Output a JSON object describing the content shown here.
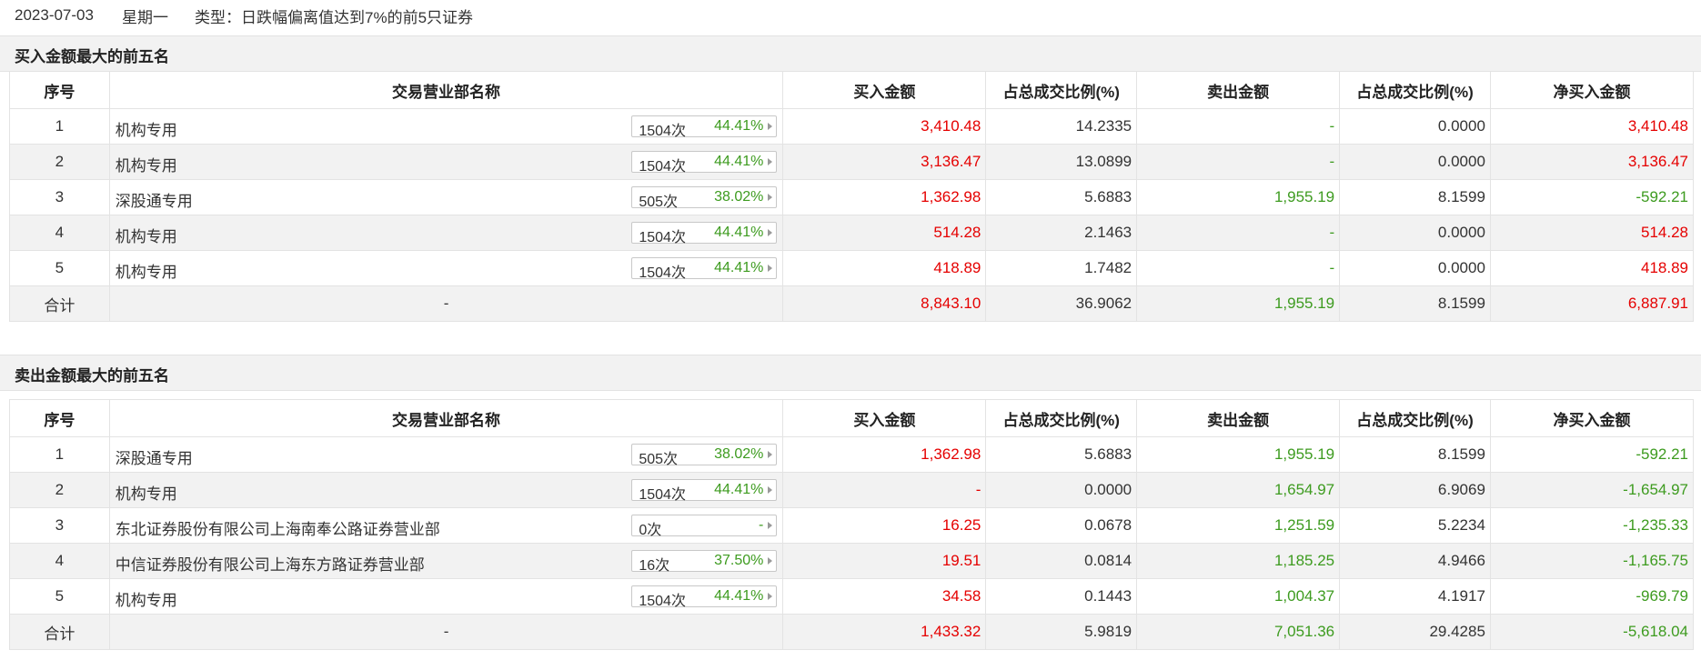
{
  "header": {
    "date": "2023-07-03",
    "weekday": "星期一",
    "type_label": "类型：日跌幅偏离值达到7%的前5只证券"
  },
  "columns": [
    "序号",
    "交易营业部名称",
    "买入金额",
    "占总成交比例(%)",
    "卖出金额",
    "占总成交比例(%)",
    "净买入金额"
  ],
  "buy_section": {
    "title": "买入金额最大的前五名",
    "rows": [
      {
        "rank": "1",
        "name": "机构专用",
        "count": "1504次",
        "pct": "44.41%",
        "buy": "3,410.48",
        "buy_ratio": "14.2335",
        "sell": "-",
        "sell_ratio": "0.0000",
        "net": "3,410.48"
      },
      {
        "rank": "2",
        "name": "机构专用",
        "count": "1504次",
        "pct": "44.41%",
        "buy": "3,136.47",
        "buy_ratio": "13.0899",
        "sell": "-",
        "sell_ratio": "0.0000",
        "net": "3,136.47"
      },
      {
        "rank": "3",
        "name": "深股通专用",
        "count": "505次",
        "pct": "38.02%",
        "buy": "1,362.98",
        "buy_ratio": "5.6883",
        "sell": "1,955.19",
        "sell_ratio": "8.1599",
        "net": "-592.21"
      },
      {
        "rank": "4",
        "name": "机构专用",
        "count": "1504次",
        "pct": "44.41%",
        "buy": "514.28",
        "buy_ratio": "2.1463",
        "sell": "-",
        "sell_ratio": "0.0000",
        "net": "514.28"
      },
      {
        "rank": "5",
        "name": "机构专用",
        "count": "1504次",
        "pct": "44.41%",
        "buy": "418.89",
        "buy_ratio": "1.7482",
        "sell": "-",
        "sell_ratio": "0.0000",
        "net": "418.89"
      }
    ],
    "total": {
      "label": "合计",
      "name": "-",
      "buy": "8,843.10",
      "buy_ratio": "36.9062",
      "sell": "1,955.19",
      "sell_ratio": "8.1599",
      "net": "6,887.91"
    }
  },
  "sell_section": {
    "title": "卖出金额最大的前五名",
    "rows": [
      {
        "rank": "1",
        "name": "深股通专用",
        "count": "505次",
        "pct": "38.02%",
        "buy": "1,362.98",
        "buy_ratio": "5.6883",
        "sell": "1,955.19",
        "sell_ratio": "8.1599",
        "net": "-592.21"
      },
      {
        "rank": "2",
        "name": "机构专用",
        "count": "1504次",
        "pct": "44.41%",
        "buy": "-",
        "buy_ratio": "0.0000",
        "sell": "1,654.97",
        "sell_ratio": "6.9069",
        "net": "-1,654.97"
      },
      {
        "rank": "3",
        "name": "东北证券股份有限公司上海南奉公路证券营业部",
        "count": "0次",
        "pct": "-",
        "buy": "16.25",
        "buy_ratio": "0.0678",
        "sell": "1,251.59",
        "sell_ratio": "5.2234",
        "net": "-1,235.33"
      },
      {
        "rank": "4",
        "name": "中信证券股份有限公司上海东方路证券营业部",
        "count": "16次",
        "pct": "37.50%",
        "buy": "19.51",
        "buy_ratio": "0.0814",
        "sell": "1,185.25",
        "sell_ratio": "4.9466",
        "net": "-1,165.75"
      },
      {
        "rank": "5",
        "name": "机构专用",
        "count": "1504次",
        "pct": "44.41%",
        "buy": "34.58",
        "buy_ratio": "0.1443",
        "sell": "1,004.37",
        "sell_ratio": "4.1917",
        "net": "-969.79"
      }
    ],
    "total": {
      "label": "合计",
      "name": "-",
      "buy": "1,433.32",
      "buy_ratio": "5.9819",
      "sell": "7,051.36",
      "sell_ratio": "29.4285",
      "net": "-5,618.04"
    }
  },
  "colors": {
    "buy": "#e50000",
    "sell": "#3d9b1f",
    "stripe": "#f2f2f2",
    "border": "#e3e3e3"
  }
}
